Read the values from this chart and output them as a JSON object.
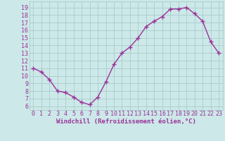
{
  "x": [
    0,
    1,
    2,
    3,
    4,
    5,
    6,
    7,
    8,
    9,
    10,
    11,
    12,
    13,
    14,
    15,
    16,
    17,
    18,
    19,
    20,
    21,
    22,
    23
  ],
  "y": [
    11.0,
    10.5,
    9.5,
    8.0,
    7.8,
    7.2,
    6.5,
    6.2,
    7.2,
    9.2,
    11.5,
    13.0,
    13.8,
    15.0,
    16.5,
    17.2,
    17.8,
    18.8,
    18.8,
    19.0,
    18.2,
    17.2,
    14.5,
    13.0
  ],
  "line_color": "#993399",
  "marker": "+",
  "bg_color": "#cce8e8",
  "grid_color": "#aacccc",
  "xlabel": "Windchill (Refroidissement éolien,°C)",
  "ylabel_ticks": [
    6,
    7,
    8,
    9,
    10,
    11,
    12,
    13,
    14,
    15,
    16,
    17,
    18,
    19
  ],
  "xlim": [
    -0.5,
    23.5
  ],
  "ylim": [
    5.5,
    19.8
  ],
  "xlabel_color": "#993399",
  "tick_color": "#993399",
  "axis_label_fontsize": 6.5,
  "tick_fontsize": 6.0
}
